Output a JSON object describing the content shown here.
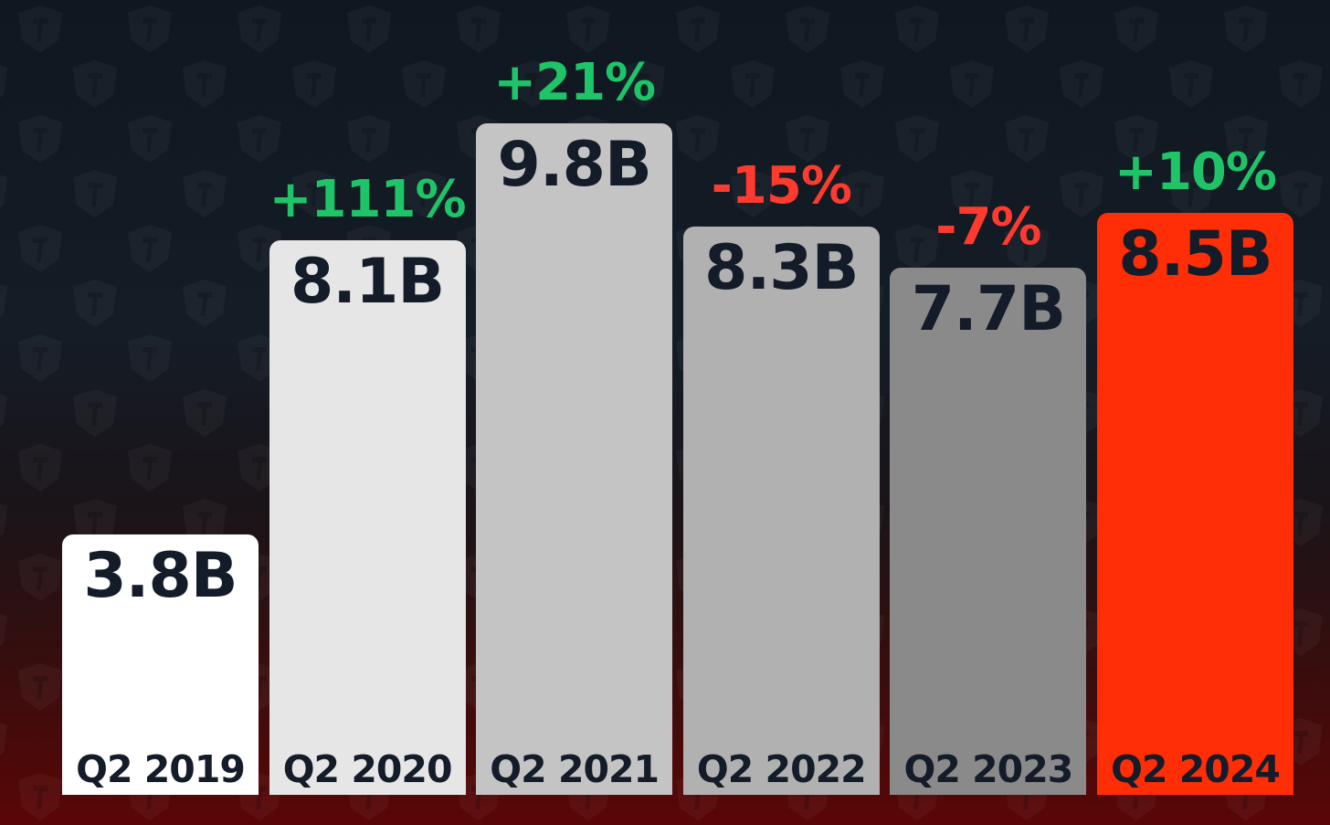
{
  "chart_data": {
    "type": "bar",
    "categories": [
      "Q2 2019",
      "Q2 2020",
      "Q2 2021",
      "Q2 2022",
      "Q2 2023",
      "Q2 2024"
    ],
    "values": [
      3.8,
      8.1,
      9.8,
      8.3,
      7.7,
      8.5
    ],
    "value_labels": [
      "3.8B",
      "8.1B",
      "9.8B",
      "8.3B",
      "7.7B",
      "8.5B"
    ],
    "change_labels": [
      "",
      "+111%",
      "+21%",
      "-15%",
      "-7%",
      "+10%"
    ],
    "bar_colors": [
      "#ffffff",
      "#e6e6e6",
      "#c4c4c4",
      "#b1b1b1",
      "#8a8a8a",
      "#ff2e06"
    ],
    "change_colors": {
      "positive": "#1ec467",
      "negative": "#ff3a2f"
    },
    "ylim": [
      0,
      11.6
    ],
    "grid": false,
    "legend": "none",
    "title": "",
    "xlabel": "",
    "ylabel": ""
  }
}
